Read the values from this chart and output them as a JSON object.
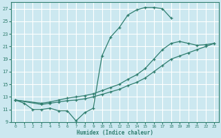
{
  "xlabel": "Humidex (Indice chaleur)",
  "background_color": "#cce8f0",
  "grid_color": "#ffffff",
  "line_color": "#2e7d6e",
  "xlim": [
    -0.5,
    23.5
  ],
  "ylim": [
    9,
    28
  ],
  "xticks": [
    0,
    1,
    2,
    3,
    4,
    5,
    6,
    7,
    8,
    9,
    10,
    11,
    12,
    13,
    14,
    15,
    16,
    17,
    18,
    19,
    20,
    21,
    22,
    23
  ],
  "yticks": [
    9,
    11,
    13,
    15,
    17,
    19,
    21,
    23,
    25,
    27
  ],
  "series": [
    {
      "x": [
        0,
        1,
        2,
        3,
        4,
        5,
        6,
        7,
        8,
        9,
        10,
        11,
        12,
        13,
        14,
        15,
        16,
        17,
        18
      ],
      "y": [
        12.5,
        12.0,
        11.0,
        11.0,
        11.2,
        10.8,
        10.8,
        9.2,
        10.5,
        11.2,
        19.5,
        22.5,
        24.0,
        26.0,
        26.8,
        27.2,
        27.2,
        27.0,
        25.5
      ]
    },
    {
      "x": [
        0,
        3,
        4,
        5,
        6,
        7,
        8,
        9,
        10,
        11,
        12,
        13,
        14,
        15,
        16,
        17,
        18,
        19,
        20,
        21,
        22,
        23
      ],
      "y": [
        12.5,
        12.0,
        12.2,
        12.5,
        12.8,
        13.0,
        13.2,
        13.5,
        14.0,
        14.5,
        15.0,
        15.8,
        16.5,
        17.5,
        19.0,
        20.5,
        21.5,
        21.8,
        21.5,
        21.2,
        21.3,
        21.5
      ]
    },
    {
      "x": [
        0,
        3,
        4,
        5,
        6,
        7,
        8,
        9,
        10,
        11,
        12,
        13,
        14,
        15,
        16,
        17,
        18,
        19,
        20,
        21,
        22,
        23
      ],
      "y": [
        12.5,
        11.8,
        12.0,
        12.2,
        12.4,
        12.5,
        12.7,
        13.0,
        13.4,
        13.8,
        14.2,
        14.8,
        15.3,
        16.0,
        17.0,
        18.0,
        19.0,
        19.5,
        20.0,
        20.5,
        21.0,
        21.5
      ]
    }
  ]
}
